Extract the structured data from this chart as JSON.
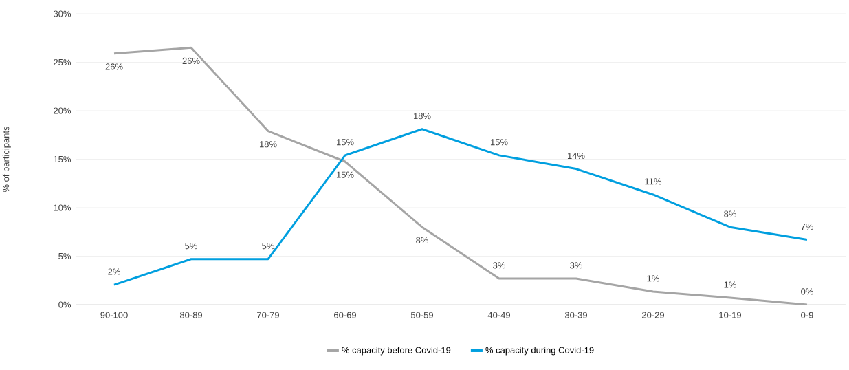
{
  "chart_data": {
    "type": "line",
    "ylabel": "% of participants",
    "categories": [
      "90-100",
      "80-89",
      "70-79",
      "60-69",
      "50-59",
      "40-49",
      "30-39",
      "20-29",
      "10-19",
      "0-9"
    ],
    "series": [
      {
        "name": "% capacity before Covid-19",
        "color": "#a5a5a5",
        "values": [
          25.9,
          26.5,
          17.9,
          14.75,
          8.0,
          2.7,
          2.7,
          1.35,
          0.7,
          0.0
        ],
        "value_labels": [
          "26%",
          "26%",
          "18%",
          "15%",
          "8%",
          "3%",
          "3%",
          "1%",
          "1%",
          "0%"
        ]
      },
      {
        "name": "% capacity during Covid-19",
        "color": "#009fdf",
        "values": [
          2.05,
          4.7,
          4.7,
          15.4,
          18.1,
          15.4,
          14.0,
          11.35,
          8.0,
          6.7
        ],
        "value_labels": [
          "2%",
          "5%",
          "5%",
          "15%",
          "18%",
          "15%",
          "14%",
          "11%",
          "8%",
          "7%"
        ]
      }
    ],
    "ylim": [
      0,
      30
    ],
    "yticks": [
      {
        "value": 0,
        "label": "0%"
      },
      {
        "value": 5,
        "label": "5%"
      },
      {
        "value": 10,
        "label": "10%"
      },
      {
        "value": 15,
        "label": "15%"
      },
      {
        "value": 20,
        "label": "20%"
      },
      {
        "value": 25,
        "label": "25%"
      },
      {
        "value": 30,
        "label": "30%"
      }
    ],
    "grid": "y",
    "legend": "bottom",
    "marker": "none",
    "line_style": "solid"
  }
}
